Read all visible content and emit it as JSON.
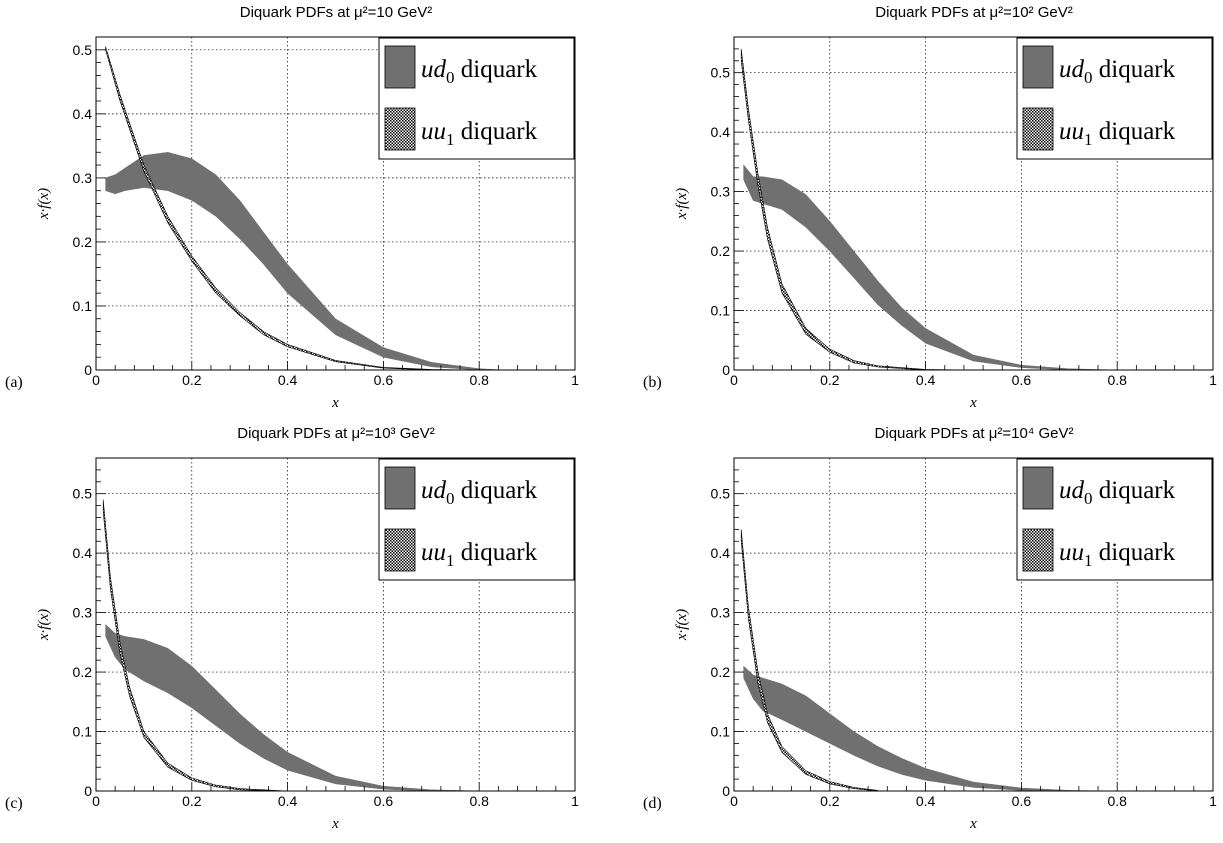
{
  "chart_data": [
    {
      "type": "area",
      "panel_label": "(a)",
      "title": "Diquark PDFs at μ²=10 GeV²",
      "xlabel": "x",
      "ylabel": "x·f(x)",
      "xlim": [
        0,
        1
      ],
      "ylim": [
        0,
        0.52
      ],
      "xticks": [
        "0",
        "0.2",
        "0.4",
        "0.6",
        "0.8",
        "1"
      ],
      "yticks": [
        "0",
        "0.1",
        "0.2",
        "0.3",
        "0.4",
        "0.5"
      ],
      "grid": true,
      "legend_position": "top-right",
      "series": [
        {
          "name": "ud0 diquark",
          "x": [
            0.02,
            0.04,
            0.06,
            0.1,
            0.15,
            0.2,
            0.25,
            0.3,
            0.35,
            0.4,
            0.5,
            0.6,
            0.7,
            0.8,
            0.85
          ],
          "lower": [
            0.28,
            0.275,
            0.28,
            0.285,
            0.28,
            0.265,
            0.24,
            0.205,
            0.165,
            0.12,
            0.055,
            0.02,
            0.005,
            0.0,
            0.0
          ],
          "upper": [
            0.3,
            0.305,
            0.315,
            0.335,
            0.34,
            0.33,
            0.305,
            0.265,
            0.215,
            0.165,
            0.08,
            0.035,
            0.012,
            0.002,
            0.0
          ]
        },
        {
          "name": "uu1 diquark",
          "x": [
            0.02,
            0.05,
            0.1,
            0.15,
            0.2,
            0.25,
            0.3,
            0.35,
            0.4,
            0.5,
            0.6,
            0.7,
            0.8
          ],
          "lower": [
            0.5,
            0.42,
            0.31,
            0.23,
            0.17,
            0.12,
            0.085,
            0.055,
            0.036,
            0.013,
            0.003,
            0.0,
            0.0
          ],
          "upper": [
            0.505,
            0.43,
            0.32,
            0.24,
            0.178,
            0.128,
            0.09,
            0.06,
            0.04,
            0.015,
            0.004,
            0.001,
            0.0
          ]
        }
      ]
    },
    {
      "type": "area",
      "panel_label": "(b)",
      "title": "Diquark PDFs at μ²=10² GeV²",
      "xlabel": "x",
      "ylabel": "x·f(x)",
      "xlim": [
        0,
        1
      ],
      "ylim": [
        0,
        0.56
      ],
      "xticks": [
        "0",
        "0.2",
        "0.4",
        "0.6",
        "0.8",
        "1"
      ],
      "yticks": [
        "0",
        "0.1",
        "0.2",
        "0.3",
        "0.4",
        "0.5"
      ],
      "grid": true,
      "legend_position": "top-right",
      "series": [
        {
          "name": "ud0 diquark",
          "x": [
            0.02,
            0.04,
            0.06,
            0.1,
            0.15,
            0.2,
            0.25,
            0.3,
            0.35,
            0.4,
            0.5,
            0.6,
            0.7,
            0.8
          ],
          "lower": [
            0.32,
            0.285,
            0.28,
            0.27,
            0.24,
            0.2,
            0.155,
            0.11,
            0.075,
            0.045,
            0.015,
            0.004,
            0.0,
            0.0
          ],
          "upper": [
            0.345,
            0.325,
            0.325,
            0.32,
            0.295,
            0.25,
            0.2,
            0.15,
            0.105,
            0.07,
            0.025,
            0.008,
            0.002,
            0.0
          ]
        },
        {
          "name": "uu1 diquark",
          "x": [
            0.015,
            0.03,
            0.05,
            0.07,
            0.1,
            0.15,
            0.2,
            0.25,
            0.3,
            0.4,
            0.5
          ],
          "lower": [
            0.52,
            0.42,
            0.31,
            0.22,
            0.13,
            0.06,
            0.03,
            0.012,
            0.005,
            0.0,
            0.0
          ],
          "upper": [
            0.54,
            0.44,
            0.33,
            0.24,
            0.145,
            0.07,
            0.035,
            0.016,
            0.007,
            0.001,
            0.0
          ]
        }
      ]
    },
    {
      "type": "area",
      "panel_label": "(c)",
      "title": "Diquark PDFs at μ²=10³ GeV²",
      "xlabel": "x",
      "ylabel": "x·f(x)",
      "xlim": [
        0,
        1
      ],
      "ylim": [
        0,
        0.56
      ],
      "xticks": [
        "0",
        "0.2",
        "0.4",
        "0.6",
        "0.8",
        "1"
      ],
      "yticks": [
        "0",
        "0.1",
        "0.2",
        "0.3",
        "0.4",
        "0.5"
      ],
      "grid": true,
      "legend_position": "top-right",
      "series": [
        {
          "name": "ud0 diquark",
          "x": [
            0.02,
            0.04,
            0.06,
            0.1,
            0.15,
            0.2,
            0.25,
            0.3,
            0.35,
            0.4,
            0.5,
            0.6,
            0.7,
            0.8
          ],
          "lower": [
            0.26,
            0.225,
            0.205,
            0.185,
            0.165,
            0.14,
            0.11,
            0.08,
            0.055,
            0.035,
            0.012,
            0.003,
            0.0,
            0.0
          ],
          "upper": [
            0.28,
            0.265,
            0.26,
            0.255,
            0.24,
            0.21,
            0.17,
            0.13,
            0.095,
            0.065,
            0.025,
            0.008,
            0.002,
            0.0
          ]
        },
        {
          "name": "uu1 diquark",
          "x": [
            0.015,
            0.03,
            0.05,
            0.07,
            0.1,
            0.15,
            0.2,
            0.25,
            0.3,
            0.4
          ],
          "lower": [
            0.47,
            0.34,
            0.23,
            0.16,
            0.09,
            0.04,
            0.018,
            0.007,
            0.002,
            0.0
          ],
          "upper": [
            0.49,
            0.36,
            0.25,
            0.175,
            0.1,
            0.047,
            0.022,
            0.01,
            0.004,
            0.0
          ]
        }
      ]
    },
    {
      "type": "area",
      "panel_label": "(d)",
      "title": "Diquark PDFs at μ²=10⁴ GeV²",
      "xlabel": "x",
      "ylabel": "x·f(x)",
      "xlim": [
        0,
        1
      ],
      "ylim": [
        0,
        0.56
      ],
      "xticks": [
        "0",
        "0.2",
        "0.4",
        "0.6",
        "0.8",
        "1"
      ],
      "yticks": [
        "0",
        "0.1",
        "0.2",
        "0.3",
        "0.4",
        "0.5"
      ],
      "grid": true,
      "legend_position": "top-right",
      "series": [
        {
          "name": "ud0 diquark",
          "x": [
            0.02,
            0.04,
            0.06,
            0.1,
            0.15,
            0.2,
            0.25,
            0.3,
            0.35,
            0.4,
            0.5,
            0.6,
            0.7,
            0.8
          ],
          "lower": [
            0.19,
            0.155,
            0.135,
            0.12,
            0.1,
            0.08,
            0.06,
            0.042,
            0.028,
            0.018,
            0.006,
            0.001,
            0.0,
            0.0
          ],
          "upper": [
            0.21,
            0.195,
            0.19,
            0.18,
            0.16,
            0.13,
            0.1,
            0.075,
            0.055,
            0.038,
            0.015,
            0.005,
            0.001,
            0.0
          ]
        },
        {
          "name": "uu1 diquark",
          "x": [
            0.015,
            0.03,
            0.05,
            0.07,
            0.1,
            0.15,
            0.2,
            0.25,
            0.3
          ],
          "lower": [
            0.42,
            0.29,
            0.18,
            0.115,
            0.065,
            0.028,
            0.012,
            0.004,
            0.0
          ],
          "upper": [
            0.44,
            0.31,
            0.2,
            0.13,
            0.075,
            0.034,
            0.016,
            0.006,
            0.001
          ]
        }
      ]
    }
  ]
}
